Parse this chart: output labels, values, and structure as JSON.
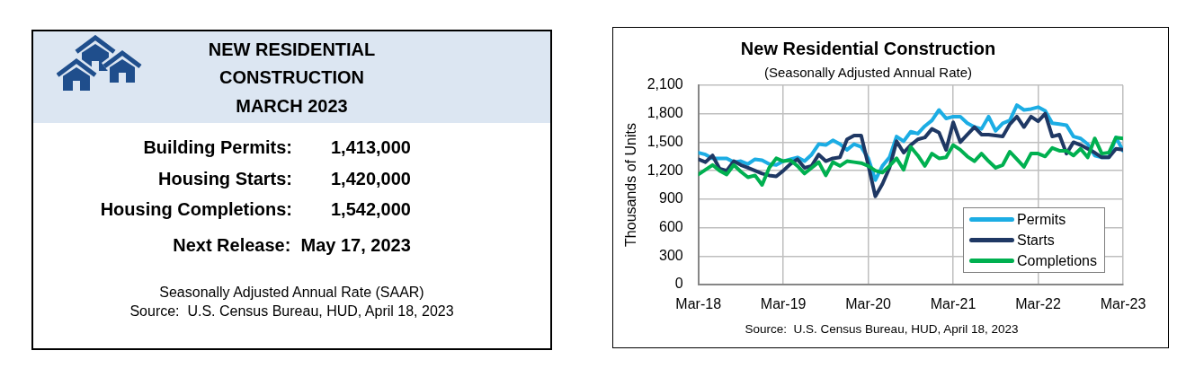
{
  "chart_data": [
    {
      "type": "other",
      "title": "NEW RESIDENTIAL CONSTRUCTION",
      "subtitle": "MARCH 2023",
      "annotations": [
        "Building Permits:",
        "1,413,000",
        "Housing Starts:",
        "1,420,000",
        "Housing Completions:",
        "1,542,000",
        "Next Release:  May 17, 2023",
        "Seasonally Adjusted Annual Rate (SAAR)",
        "Source:  U.S. Census Bureau, HUD, April 18, 2023"
      ]
    },
    {
      "type": "line",
      "title": "New Residential Construction",
      "subtitle": "(Seasonally Adjusted Annual Rate)",
      "ylabel": "Thousands of Units",
      "annotations": [
        "Source:  U.S. Census Bureau, HUD, April 18, 2023"
      ],
      "x": [
        "2018-03",
        "2018-04",
        "2018-05",
        "2018-06",
        "2018-07",
        "2018-08",
        "2018-09",
        "2018-10",
        "2018-11",
        "2018-12",
        "2019-01",
        "2019-02",
        "2019-03",
        "2019-04",
        "2019-05",
        "2019-06",
        "2019-07",
        "2019-08",
        "2019-09",
        "2019-10",
        "2019-11",
        "2019-12",
        "2020-01",
        "2020-02",
        "2020-03",
        "2020-04",
        "2020-05",
        "2020-06",
        "2020-07",
        "2020-08",
        "2020-09",
        "2020-10",
        "2020-11",
        "2020-12",
        "2021-01",
        "2021-02",
        "2021-03",
        "2021-04",
        "2021-05",
        "2021-06",
        "2021-07",
        "2021-08",
        "2021-09",
        "2021-10",
        "2021-11",
        "2021-12",
        "2022-01",
        "2022-02",
        "2022-03",
        "2022-04",
        "2022-05",
        "2022-06",
        "2022-07",
        "2022-08",
        "2022-09",
        "2022-10",
        "2022-11",
        "2022-12",
        "2023-01",
        "2023-02",
        "2023-03"
      ],
      "xlim": [
        "2018-03",
        "2023-03"
      ],
      "xticks": [
        {
          "value": "2018-03",
          "label": "Mar-18"
        },
        {
          "value": "2019-03",
          "label": "Mar-19"
        },
        {
          "value": "2020-03",
          "label": "Mar-20"
        },
        {
          "value": "2021-03",
          "label": "Mar-21"
        },
        {
          "value": "2022-03",
          "label": "Mar-22"
        },
        {
          "value": "2023-03",
          "label": "Mar-23"
        }
      ],
      "ylim": [
        0,
        2100
      ],
      "yticks": [
        0,
        300,
        600,
        900,
        {
          "value": 1200,
          "label": "1,200"
        },
        {
          "value": 1500,
          "label": "1,500"
        },
        {
          "value": 1800,
          "label": "1,800"
        },
        {
          "value": 2100,
          "label": "2,100"
        }
      ],
      "grid": true,
      "legend": "bottom right",
      "series": [
        {
          "name": "Permits",
          "color": "#1cade4",
          "values": [
            1390,
            1370,
            1330,
            1330,
            1330,
            1290,
            1300,
            1270,
            1320,
            1310,
            1270,
            1260,
            1300,
            1320,
            1340,
            1300,
            1370,
            1480,
            1470,
            1520,
            1480,
            1420,
            1480,
            1450,
            1330,
            1100,
            1250,
            1340,
            1560,
            1510,
            1610,
            1590,
            1670,
            1730,
            1840,
            1750,
            1770,
            1770,
            1700,
            1660,
            1640,
            1770,
            1620,
            1700,
            1730,
            1890,
            1840,
            1850,
            1870,
            1830,
            1700,
            1690,
            1680,
            1560,
            1540,
            1480,
            1360,
            1340,
            1340,
            1550,
            1410
          ]
        },
        {
          "name": "Starts",
          "color": "#1f3864",
          "values": [
            1320,
            1290,
            1360,
            1220,
            1200,
            1300,
            1260,
            1230,
            1200,
            1170,
            1150,
            1140,
            1200,
            1270,
            1320,
            1230,
            1250,
            1370,
            1300,
            1330,
            1340,
            1530,
            1570,
            1570,
            1260,
            930,
            1060,
            1230,
            1510,
            1390,
            1470,
            1530,
            1550,
            1640,
            1600,
            1420,
            1710,
            1500,
            1580,
            1660,
            1580,
            1580,
            1570,
            1560,
            1690,
            1770,
            1660,
            1770,
            1720,
            1800,
            1560,
            1580,
            1380,
            1500,
            1470,
            1430,
            1390,
            1340,
            1340,
            1430,
            1420
          ]
        },
        {
          "name": "Completions",
          "color": "#00b050",
          "values": [
            1160,
            1210,
            1260,
            1200,
            1160,
            1260,
            1190,
            1130,
            1150,
            1050,
            1230,
            1330,
            1300,
            1310,
            1250,
            1170,
            1230,
            1290,
            1150,
            1290,
            1250,
            1300,
            1290,
            1280,
            1250,
            1200,
            1180,
            1250,
            1330,
            1210,
            1450,
            1360,
            1250,
            1380,
            1330,
            1340,
            1470,
            1420,
            1350,
            1300,
            1380,
            1300,
            1230,
            1260,
            1400,
            1320,
            1240,
            1380,
            1380,
            1350,
            1440,
            1410,
            1410,
            1360,
            1430,
            1340,
            1540,
            1380,
            1390,
            1550,
            1540
          ]
        }
      ]
    }
  ]
}
